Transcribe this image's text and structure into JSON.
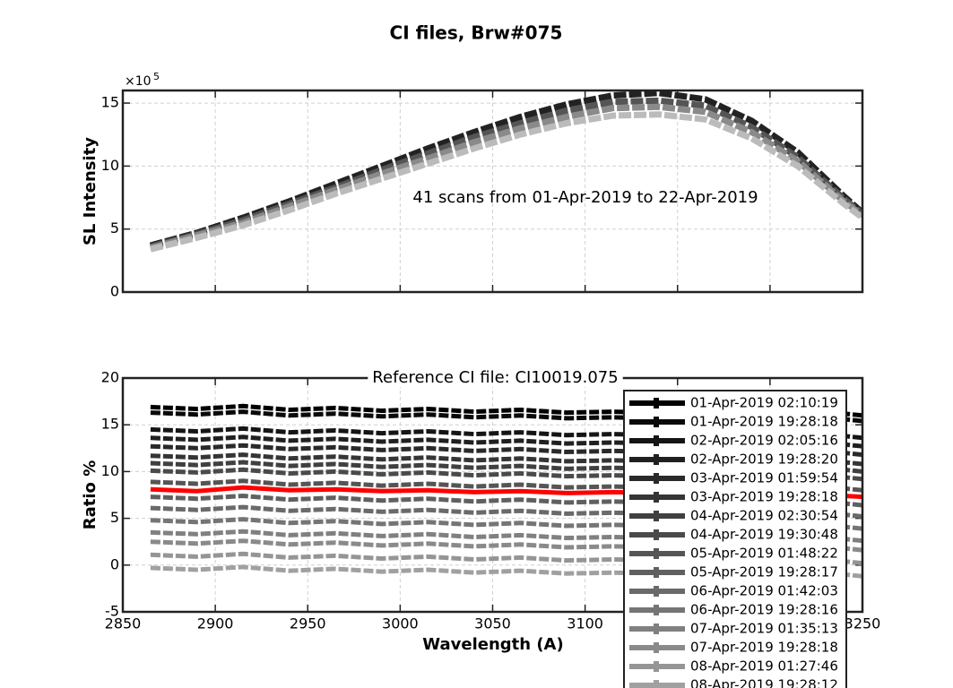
{
  "title": "CI files, Brw#075",
  "chart_data": [
    {
      "type": "line",
      "ylabel": "SL Intensity",
      "y_multiplier": "×10",
      "y_multiplier_exponent": "5",
      "annotation": "41 scans from 01-Apr-2019 to 22-Apr-2019",
      "x": [
        2865,
        2890,
        2915,
        2940,
        2965,
        2990,
        3015,
        3040,
        3065,
        3090,
        3115,
        3140,
        3165,
        3190,
        3215,
        3240,
        3250
      ],
      "xlim": [
        2850,
        3250
      ],
      "xticks": [
        2900,
        2950,
        3000,
        3050,
        3100,
        3150,
        3200
      ],
      "xticklabels": false,
      "ylim": [
        0,
        16
      ],
      "yticks": [
        0,
        5,
        10,
        15
      ],
      "grid": true,
      "series": [
        {
          "color": "#222222",
          "values": [
            3.7,
            4.7,
            5.9,
            7.2,
            8.6,
            10.0,
            11.4,
            12.7,
            13.9,
            14.9,
            15.6,
            15.8,
            15.3,
            13.6,
            11.1,
            7.6,
            6.3
          ]
        },
        {
          "color": "#555555",
          "values": [
            3.6,
            4.6,
            5.7,
            7.0,
            8.3,
            9.7,
            11.0,
            12.3,
            13.4,
            14.4,
            15.1,
            15.2,
            14.8,
            13.1,
            10.7,
            7.4,
            6.2
          ]
        },
        {
          "color": "#8a8a8a",
          "values": [
            3.5,
            4.5,
            5.5,
            6.8,
            8.1,
            9.4,
            10.6,
            11.9,
            13.0,
            13.9,
            14.6,
            14.7,
            14.3,
            12.7,
            10.4,
            7.2,
            6.1
          ]
        },
        {
          "color": "#bbbbbb",
          "values": [
            3.4,
            4.3,
            5.3,
            6.5,
            7.8,
            9.0,
            10.2,
            11.4,
            12.5,
            13.4,
            14.0,
            14.1,
            13.7,
            12.2,
            10.0,
            7.0,
            5.9
          ]
        }
      ]
    },
    {
      "type": "line",
      "title": "Reference CI file: CI10019.075",
      "xlabel": "Wavelength (A)",
      "ylabel": "Ratio %",
      "x": [
        2865,
        2890,
        2915,
        2940,
        2965,
        2990,
        3015,
        3040,
        3065,
        3090,
        3115,
        3140,
        3165,
        3190,
        3215,
        3240,
        3250
      ],
      "xlim": [
        2850,
        3250
      ],
      "xticks": [
        2850,
        2900,
        2950,
        3000,
        3050,
        3100,
        3150,
        3200,
        3250
      ],
      "ylim": [
        -5,
        20
      ],
      "yticks": [
        -5,
        0,
        5,
        10,
        15,
        20
      ],
      "grid": true,
      "legend": "upper right",
      "series": [
        {
          "name": "01-Apr-2019 02:10:19",
          "color": "#000000",
          "values": [
            16.9,
            16.7,
            17.0,
            16.6,
            16.8,
            16.5,
            16.7,
            16.4,
            16.6,
            16.3,
            16.4,
            16.3,
            16.2,
            16.3,
            16.1,
            16.2,
            16.0
          ]
        },
        {
          "name": "01-Apr-2019 19:28:18",
          "color": "#0a0a0a",
          "values": [
            16.3,
            16.1,
            16.4,
            16.0,
            16.2,
            15.9,
            16.1,
            15.8,
            16.0,
            15.7,
            15.8,
            15.7,
            15.6,
            15.7,
            15.5,
            15.6,
            15.4
          ]
        },
        {
          "name": "02-Apr-2019 02:05:16",
          "color": "#151515",
          "values": [
            14.5,
            14.3,
            14.6,
            14.2,
            14.4,
            14.1,
            14.3,
            14.0,
            14.2,
            13.9,
            14.0,
            13.9,
            13.8,
            13.9,
            13.7,
            13.8,
            13.6
          ]
        },
        {
          "name": "02-Apr-2019 19:28:20",
          "color": "#202020",
          "values": [
            13.6,
            13.4,
            13.7,
            13.3,
            13.5,
            13.2,
            13.4,
            13.1,
            13.3,
            13.0,
            13.1,
            13.0,
            12.9,
            13.0,
            12.8,
            12.9,
            12.7
          ]
        },
        {
          "name": "03-Apr-2019 01:59:54",
          "color": "#2a2a2a",
          "values": [
            12.7,
            12.5,
            12.8,
            12.4,
            12.6,
            12.3,
            12.5,
            12.2,
            12.4,
            12.1,
            12.2,
            12.1,
            12.0,
            12.1,
            11.9,
            12.0,
            11.8
          ]
        },
        {
          "name": "03-Apr-2019 19:28:18",
          "color": "#353535",
          "values": [
            11.7,
            11.5,
            11.8,
            11.4,
            11.6,
            11.3,
            11.5,
            11.2,
            11.4,
            11.1,
            11.2,
            11.1,
            11.0,
            11.1,
            10.9,
            11.0,
            10.8
          ]
        },
        {
          "name": "04-Apr-2019 02:30:54",
          "color": "#404040",
          "values": [
            10.9,
            10.7,
            11.0,
            10.6,
            10.8,
            10.5,
            10.7,
            10.4,
            10.6,
            10.3,
            10.4,
            10.3,
            10.2,
            10.3,
            10.1,
            10.2,
            10.0
          ]
        },
        {
          "name": "04-Apr-2019 19:30:48",
          "color": "#4a4a4a",
          "values": [
            10.1,
            9.9,
            10.2,
            9.8,
            10.0,
            9.7,
            9.9,
            9.6,
            9.8,
            9.5,
            9.6,
            9.5,
            9.4,
            9.5,
            9.3,
            9.4,
            9.2
          ]
        },
        {
          "name": "05-Apr-2019 01:48:22",
          "color": "#555555",
          "values": [
            8.9,
            8.7,
            9.0,
            8.6,
            8.8,
            8.5,
            8.7,
            8.4,
            8.6,
            8.3,
            8.4,
            8.3,
            8.2,
            8.3,
            8.1,
            8.2,
            8.0
          ]
        },
        {
          "name": "05-Apr-2019 19:28:17",
          "color": "#606060",
          "values": [
            7.3,
            7.1,
            7.4,
            7.0,
            7.2,
            6.9,
            7.1,
            6.8,
            7.0,
            6.7,
            6.8,
            6.7,
            6.6,
            6.7,
            6.5,
            6.6,
            6.4
          ]
        },
        {
          "name": "06-Apr-2019 01:42:03",
          "color": "#6a6a6a",
          "values": [
            6.1,
            5.9,
            6.2,
            5.8,
            6.0,
            5.7,
            5.9,
            5.6,
            5.8,
            5.5,
            5.6,
            5.5,
            5.4,
            5.5,
            5.3,
            5.4,
            5.2
          ]
        },
        {
          "name": "06-Apr-2019 19:28:16",
          "color": "#757575",
          "values": [
            4.8,
            4.6,
            4.9,
            4.5,
            4.7,
            4.4,
            4.6,
            4.3,
            4.5,
            4.2,
            4.3,
            4.2,
            4.1,
            4.2,
            4.0,
            4.1,
            3.9
          ]
        },
        {
          "name": "07-Apr-2019 01:35:13",
          "color": "#808080",
          "values": [
            3.5,
            3.3,
            3.6,
            3.2,
            3.4,
            3.1,
            3.3,
            3.0,
            3.2,
            2.9,
            3.0,
            2.9,
            2.8,
            2.9,
            2.7,
            2.8,
            2.6
          ]
        },
        {
          "name": "07-Apr-2019 19:28:18",
          "color": "#8a8a8a",
          "values": [
            2.5,
            2.3,
            2.6,
            2.2,
            2.4,
            2.1,
            2.3,
            2.0,
            2.2,
            1.9,
            2.0,
            1.9,
            1.8,
            1.9,
            1.7,
            1.8,
            1.6
          ]
        },
        {
          "name": "08-Apr-2019 01:27:46",
          "color": "#959595",
          "values": [
            1.1,
            0.9,
            1.2,
            0.8,
            1.0,
            0.7,
            0.9,
            0.6,
            0.8,
            0.5,
            0.6,
            0.5,
            0.4,
            0.5,
            0.3,
            0.4,
            0.2
          ]
        },
        {
          "name": "08-Apr-2019 19:28:12",
          "color": "#a0a0a0",
          "values": [
            -0.3,
            -0.5,
            -0.2,
            -0.6,
            -0.4,
            -0.7,
            -0.5,
            -0.8,
            -0.6,
            -0.9,
            -0.8,
            -0.9,
            -1.0,
            -0.9,
            -1.1,
            -1.0,
            -1.2
          ]
        },
        {
          "color": "#ff0000",
          "values": [
            8.1,
            7.9,
            8.3,
            8.0,
            8.1,
            7.9,
            8.0,
            7.8,
            7.9,
            7.7,
            7.8,
            7.7,
            7.6,
            7.7,
            7.5,
            7.4,
            7.3
          ]
        }
      ]
    }
  ]
}
